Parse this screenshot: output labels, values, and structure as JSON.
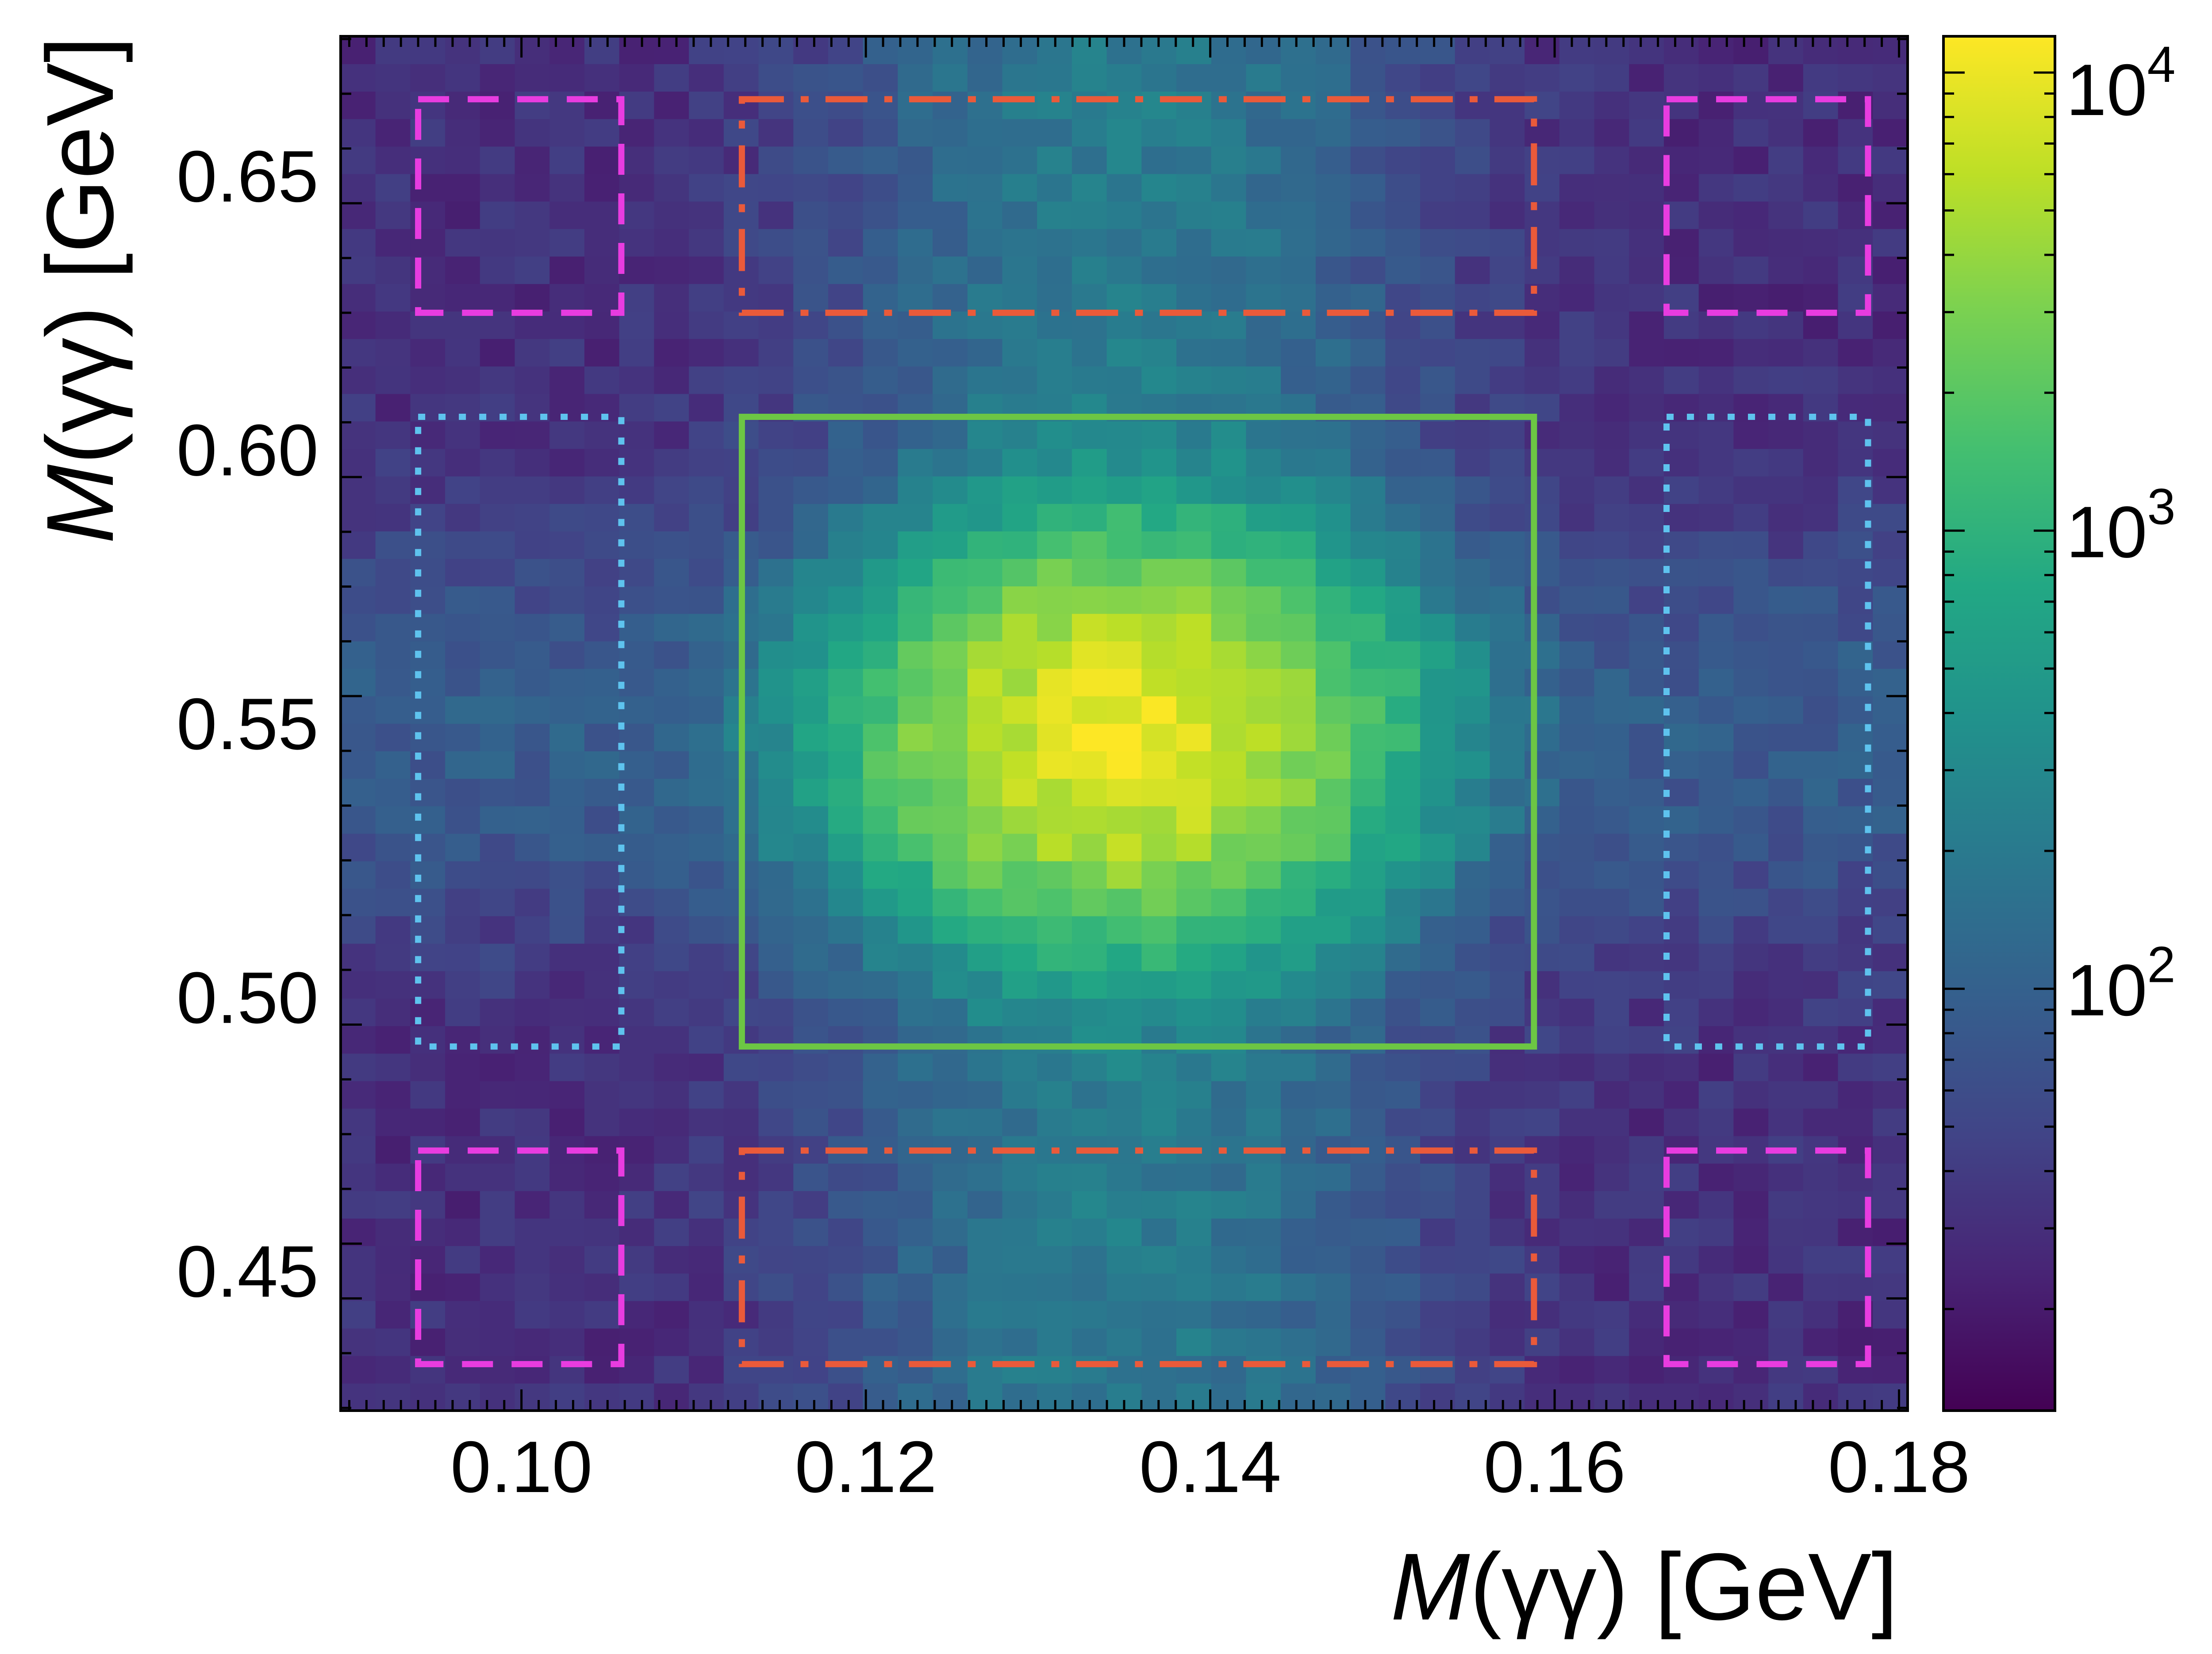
{
  "chart_data": {
    "type": "heatmap",
    "title": "",
    "xlabel": "M(γγ) [GeV]",
    "ylabel": "M(γγ) [GeV]",
    "xlim": [
      0.0895,
      0.1805
    ],
    "ylim": [
      0.4245,
      0.6755
    ],
    "x_ticks": [
      0.1,
      0.12,
      0.14,
      0.16,
      0.18
    ],
    "x_tick_labels": [
      "0.10",
      "0.12",
      "0.14",
      "0.16",
      "0.18"
    ],
    "y_ticks": [
      0.45,
      0.5,
      0.55,
      0.6,
      0.65
    ],
    "y_tick_labels": [
      "0.45",
      "0.50",
      "0.55",
      "0.60",
      "0.65"
    ],
    "bins": {
      "nx": 45,
      "ny": 50
    },
    "peak": {
      "x": 0.135,
      "y": 0.548,
      "sigma_x": 0.0075,
      "sigma_y": 0.018,
      "counts": 9000
    },
    "band_background": {
      "x_band_sigma": 0.009,
      "x_band_counts": 180,
      "y_band_sigma": 0.022,
      "y_band_counts": 60,
      "flat_counts": 30
    },
    "colorbar": {
      "scale": "log",
      "range": [
        12,
        12000
      ],
      "ticks": [
        100,
        1000,
        10000
      ],
      "tick_base": [
        "10",
        "10",
        "10"
      ],
      "tick_exp": [
        "2",
        "3",
        "4"
      ],
      "colormap": "viridis"
    },
    "regions": [
      {
        "role": "signal",
        "style": "solid",
        "color": "#6cc644",
        "x": [
          0.1128,
          0.1588
        ],
        "y": [
          0.491,
          0.606
        ]
      },
      {
        "role": "sideband-vertical",
        "style": "dotted",
        "color": "#5ec3ee",
        "x": [
          0.094,
          0.1058
        ],
        "y": [
          0.491,
          0.606
        ]
      },
      {
        "role": "sideband-vertical",
        "style": "dotted",
        "color": "#5ec3ee",
        "x": [
          0.1665,
          0.1782
        ],
        "y": [
          0.491,
          0.606
        ]
      },
      {
        "role": "sideband-horizontal",
        "style": "dashdot",
        "color": "#ea5a3a",
        "x": [
          0.1128,
          0.1588
        ],
        "y": [
          0.625,
          0.664
        ]
      },
      {
        "role": "sideband-horizontal",
        "style": "dashdot",
        "color": "#ea5a3a",
        "x": [
          0.1128,
          0.1588
        ],
        "y": [
          0.433,
          0.472
        ]
      },
      {
        "role": "sideband-corner",
        "style": "dashed",
        "color": "#e83ce0",
        "x": [
          0.094,
          0.1058
        ],
        "y": [
          0.625,
          0.664
        ]
      },
      {
        "role": "sideband-corner",
        "style": "dashed",
        "color": "#e83ce0",
        "x": [
          0.1665,
          0.1782
        ],
        "y": [
          0.625,
          0.664
        ]
      },
      {
        "role": "sideband-corner",
        "style": "dashed",
        "color": "#e83ce0",
        "x": [
          0.094,
          0.1058
        ],
        "y": [
          0.433,
          0.472
        ]
      },
      {
        "role": "sideband-corner",
        "style": "dashed",
        "color": "#e83ce0",
        "x": [
          0.1665,
          0.1782
        ],
        "y": [
          0.433,
          0.472
        ]
      }
    ]
  }
}
